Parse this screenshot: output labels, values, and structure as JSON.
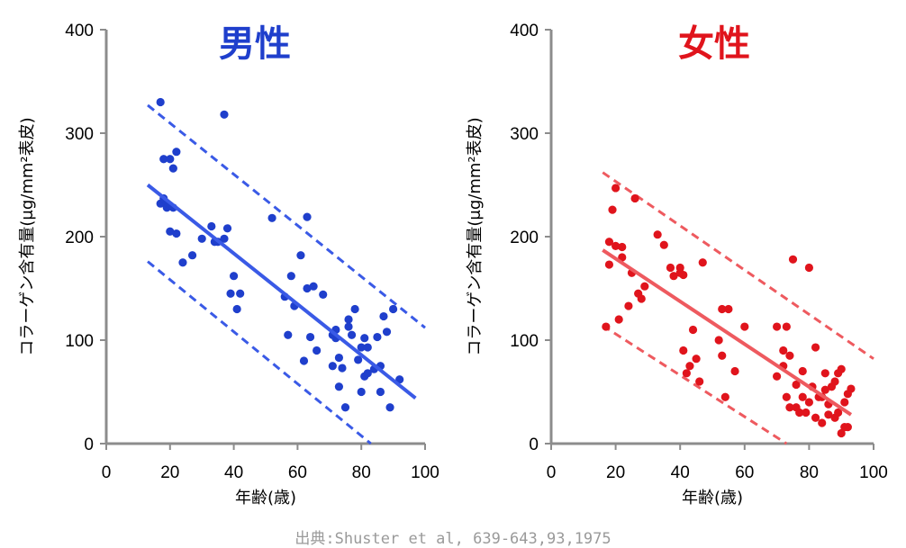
{
  "chart_data": [
    {
      "type": "scatter",
      "title": "男性",
      "color": "#1f3fcc",
      "line_color": "#3a5ae6",
      "xlabel": "年齢(歳)",
      "ylabel": "コラーゲン含有量(μg/mm²表皮)",
      "xlim": [
        0,
        100
      ],
      "ylim": [
        0,
        400
      ],
      "xticks": [
        0,
        20,
        40,
        60,
        80,
        100
      ],
      "yticks": [
        0,
        100,
        200,
        300,
        400
      ],
      "grid": false,
      "regression": {
        "x": [
          13,
          97
        ],
        "y": [
          250,
          44
        ]
      },
      "upper_band": {
        "x": [
          13,
          100
        ],
        "y": [
          327,
          112
        ]
      },
      "lower_band": {
        "x": [
          13,
          83
        ],
        "y": [
          176,
          0
        ]
      },
      "points": {
        "x": [
          17,
          17,
          18,
          18,
          19,
          19,
          20,
          20,
          20,
          21,
          21,
          22,
          22,
          24,
          27,
          30,
          33,
          34,
          35,
          37,
          37,
          38,
          39,
          40,
          41,
          42,
          52,
          56,
          57,
          58,
          59,
          61,
          62,
          63,
          63,
          64,
          65,
          66,
          68,
          71,
          71,
          72,
          72,
          73,
          73,
          74,
          75,
          76,
          76,
          77,
          78,
          79,
          80,
          80,
          81,
          81,
          82,
          82,
          84,
          85,
          86,
          86,
          87,
          88,
          89,
          90,
          92
        ],
        "y": [
          330,
          232,
          275,
          237,
          232,
          228,
          275,
          230,
          205,
          266,
          228,
          282,
          203,
          175,
          182,
          198,
          210,
          195,
          195,
          318,
          198,
          208,
          145,
          162,
          130,
          145,
          218,
          142,
          105,
          162,
          133,
          182,
          80,
          219,
          150,
          103,
          152,
          90,
          144,
          75,
          105,
          102,
          110,
          83,
          55,
          73,
          35,
          120,
          113,
          105,
          130,
          81,
          93,
          50,
          102,
          65,
          93,
          68,
          72,
          103,
          50,
          75,
          123,
          108,
          35,
          130,
          62
        ]
      }
    },
    {
      "type": "scatter",
      "title": "女性",
      "color": "#e0141c",
      "line_color": "#ee5a5f",
      "xlabel": "年齢(歳)",
      "ylabel": "コラーゲン含有量(μg/mm²表皮)",
      "xlim": [
        0,
        100
      ],
      "ylim": [
        0,
        400
      ],
      "xticks": [
        0,
        20,
        40,
        60,
        80,
        100
      ],
      "yticks": [
        0,
        100,
        200,
        300,
        400
      ],
      "grid": false,
      "regression": {
        "x": [
          16,
          93
        ],
        "y": [
          187,
          28
        ]
      },
      "upper_band": {
        "x": [
          16,
          100
        ],
        "y": [
          262,
          82
        ]
      },
      "lower_band": {
        "x": [
          16,
          73
        ],
        "y": [
          114,
          0
        ]
      },
      "points": {
        "x": [
          17,
          18,
          18,
          19,
          20,
          20,
          21,
          22,
          22,
          24,
          25,
          26,
          27,
          28,
          29,
          33,
          35,
          37,
          38,
          40,
          40,
          41,
          41,
          42,
          43,
          44,
          45,
          46,
          47,
          52,
          53,
          53,
          54,
          55,
          57,
          60,
          70,
          70,
          72,
          72,
          73,
          73,
          74,
          74,
          75,
          76,
          76,
          77,
          78,
          78,
          79,
          80,
          80,
          81,
          82,
          82,
          83,
          84,
          84,
          85,
          85,
          86,
          86,
          87,
          88,
          88,
          89,
          89,
          90,
          90,
          91,
          91,
          92,
          92,
          93
        ],
        "y": [
          113,
          195,
          173,
          226,
          247,
          191,
          120,
          190,
          180,
          133,
          165,
          237,
          145,
          140,
          152,
          202,
          192,
          170,
          162,
          170,
          165,
          163,
          90,
          68,
          75,
          110,
          82,
          60,
          175,
          100,
          130,
          85,
          45,
          130,
          70,
          113,
          113,
          65,
          75,
          90,
          113,
          45,
          35,
          85,
          178,
          35,
          57,
          30,
          70,
          45,
          30,
          40,
          170,
          55,
          25,
          93,
          45,
          20,
          45,
          68,
          52,
          38,
          28,
          55,
          60,
          25,
          68,
          30,
          72,
          10,
          16,
          40,
          48,
          16,
          53
        ]
      }
    }
  ],
  "source_note": "出典:Shuster et al, 639-643,93,1975"
}
